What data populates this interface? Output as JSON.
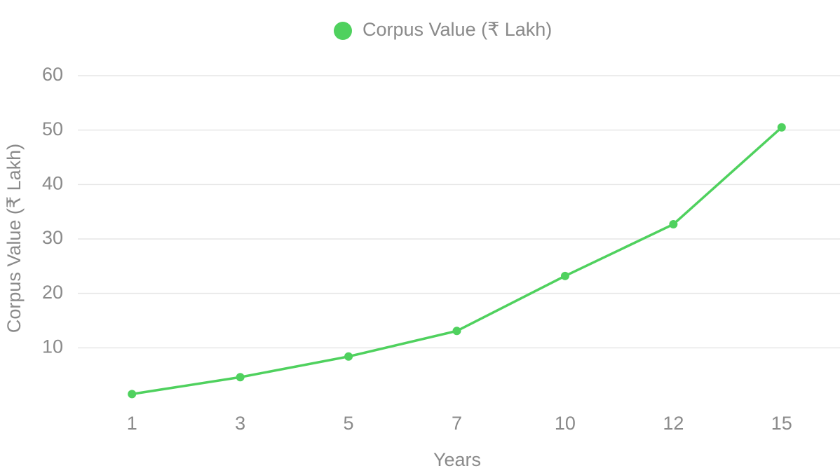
{
  "chart_data": {
    "type": "line",
    "y_label": "Corpus Value (₹ Lakh)",
    "x_label": "Years",
    "categories": [
      "1",
      "3",
      "5",
      "7",
      "10",
      "12",
      "15"
    ],
    "series": [
      {
        "name": "Corpus Value (₹ Lakh)",
        "color": "#4fd15e",
        "values": [
          1.5,
          4.6,
          8.4,
          13.1,
          23.2,
          32.7,
          50.5
        ]
      }
    ],
    "ylim": [
      0,
      60
    ],
    "yticks": [
      10,
      20,
      30,
      40,
      50,
      60
    ],
    "grid": true,
    "legend": "top"
  }
}
